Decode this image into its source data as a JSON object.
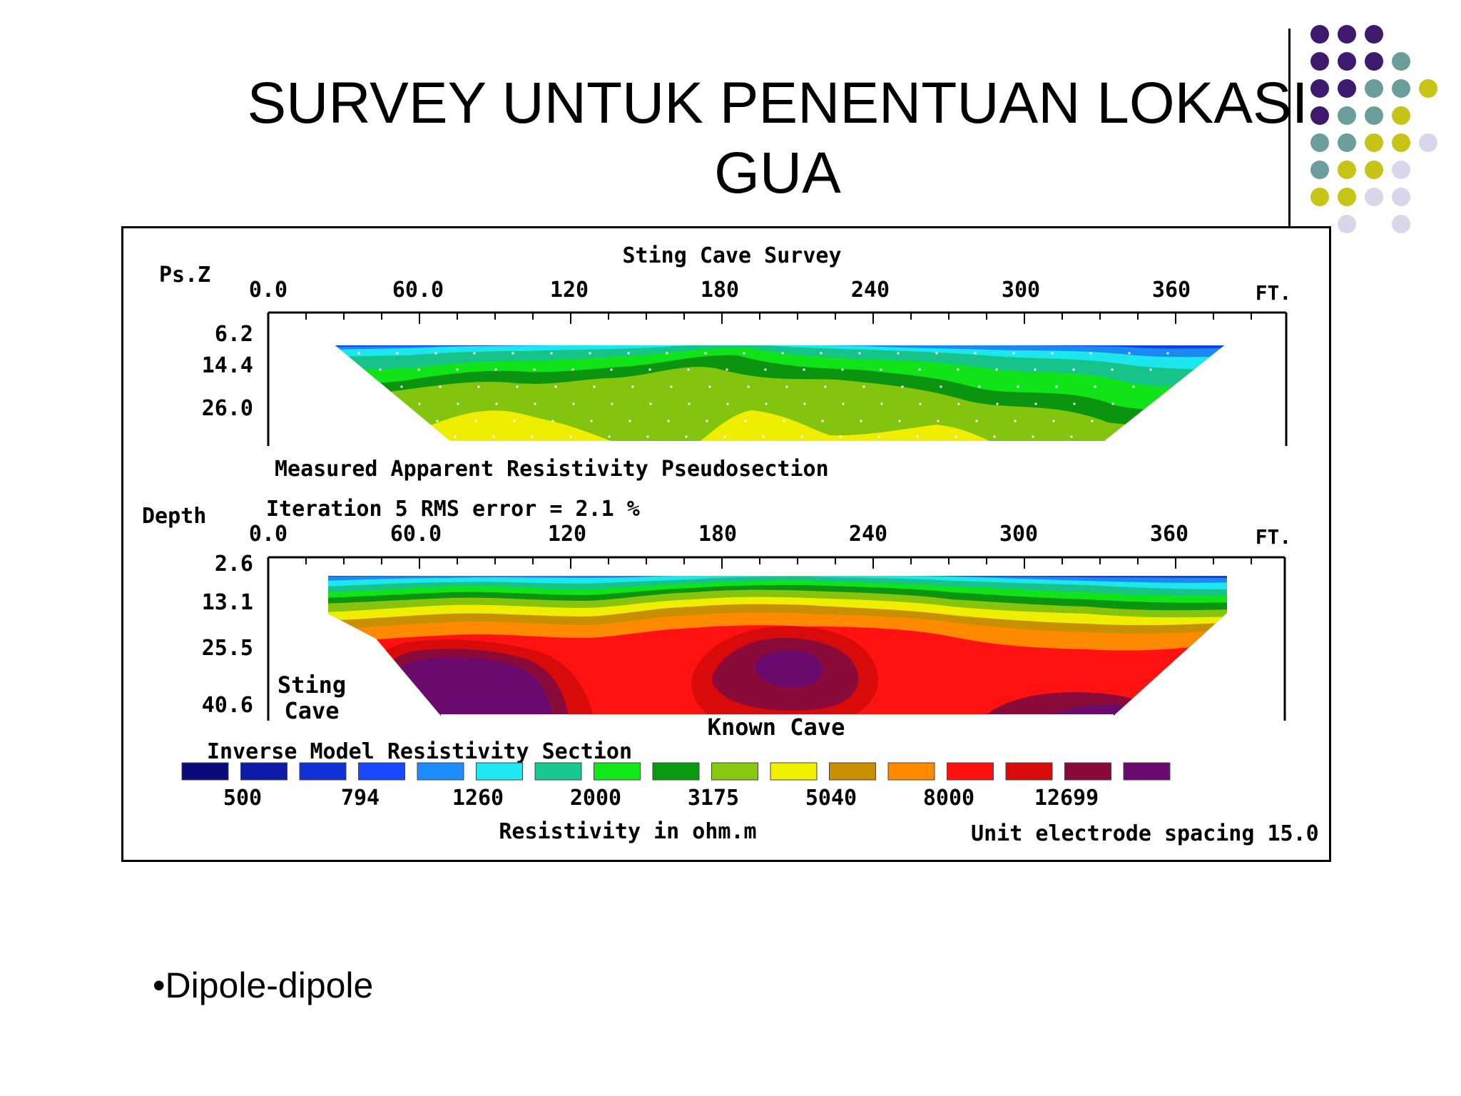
{
  "slide": {
    "title_line1": "SURVEY UNTUK PENENTUAN LOKASI",
    "title_line2": "GUA",
    "bullet": "•Dipole-dipole"
  },
  "figure": {
    "title": "Sting Cave Survey",
    "top_panel": {
      "axis_label": "Ps.Z",
      "x_ticks": [
        "0.0",
        "60.0",
        "120",
        "180",
        "240",
        "300",
        "360"
      ],
      "x_unit": "FT.",
      "y_ticks": [
        "6.2",
        "14.4",
        "26.0"
      ],
      "caption": "Measured Apparent Resistivity Pseudosection"
    },
    "bottom_panel": {
      "axis_label": "Depth",
      "subtitle": "Iteration 5 RMS error = 2.1 %",
      "x_ticks": [
        "0.0",
        "60.0",
        "120",
        "180",
        "240",
        "300",
        "360"
      ],
      "x_unit": "FT.",
      "y_ticks": [
        "2.6",
        "13.1",
        "25.5",
        "40.6"
      ],
      "annotation_sting_1": "Sting",
      "annotation_sting_2": "Cave",
      "annotation_known": "Known Cave",
      "caption": "Inverse Model Resistivity Section"
    },
    "legend": {
      "values": [
        "500",
        "794",
        "1260",
        "2000",
        "3175",
        "5040",
        "8000",
        "12699"
      ],
      "unit_label": "Resistivity in ohm.m",
      "spacing_label": "Unit electrode spacing 15.0 FT.",
      "colors": [
        "#0a0a7a",
        "#0e1aa8",
        "#1030d8",
        "#1848ff",
        "#1e8cff",
        "#20e8f0",
        "#18c890",
        "#10e818",
        "#0a9a10",
        "#88c810",
        "#f0f000",
        "#c89000",
        "#ff8a00",
        "#ff1010",
        "#d80a0a",
        "#8a0a3a",
        "#6a0a6e"
      ]
    },
    "colors": {
      "frame": "#000000",
      "decor_purple": "#3d1a6e",
      "decor_teal": "#6b9e9b",
      "decor_olive": "#c6c416",
      "decor_lavender": "#d9d6ea"
    }
  }
}
